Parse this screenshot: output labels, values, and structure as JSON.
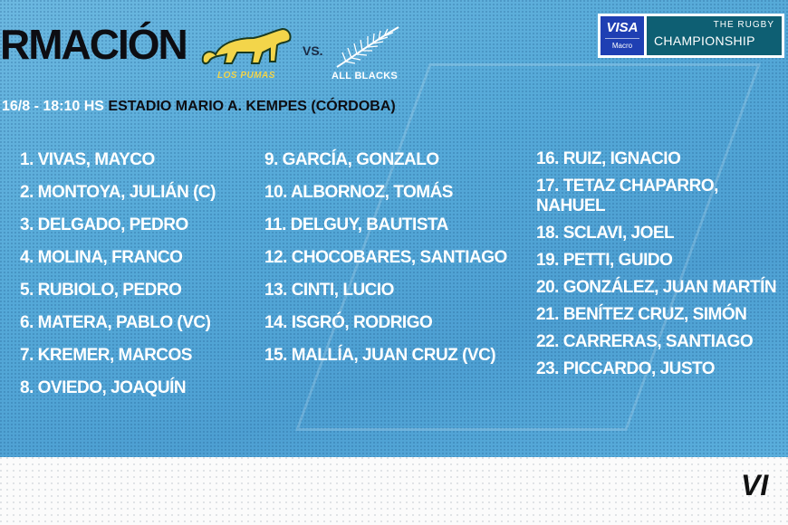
{
  "header": {
    "title": "RMACIÓN",
    "date_time": "16/8 - 18:10 HS",
    "venue": "ESTADIO MARIO A. KEMPES (CÓRDOBA)",
    "versus": "VS.",
    "home_team": "LOS PUMAS",
    "away_team": "ALL BLACKS"
  },
  "sponsor": {
    "visa": "VISA",
    "macro": "Macro",
    "trc_top": "THE RUGBY",
    "trc_main": "CHAMPIONSHIP"
  },
  "lineup": {
    "starters_forwards": [
      "1. VIVAS, MAYCO",
      "2. MONTOYA, JULIÁN (C)",
      "3. DELGADO, PEDRO",
      "4. MOLINA, FRANCO",
      "5. RUBIOLO, PEDRO",
      "6. MATERA, PABLO (VC)",
      "7. KREMER, MARCOS",
      "8. OVIEDO, JOAQUÍN"
    ],
    "starters_backs": [
      "9. GARCÍA, GONZALO",
      "10. ALBORNOZ, TOMÁS",
      "11. DELGUY, BAUTISTA",
      "12. CHOCOBARES, SANTIAGO",
      "13. CINTI, LUCIO",
      "14. ISGRÓ, RODRIGO",
      "15. MALLÍA, JUAN CRUZ  (VC)"
    ],
    "substitutes": [
      "16. RUIZ, IGNACIO",
      "17. TETAZ CHAPARRO, NAHUEL",
      "18. SCLAVI, JOEL",
      "19. PETTI, GUIDO",
      "20. GONZÁLEZ, JUAN MARTÍN",
      "21. BENÍTEZ CRUZ, SIMÓN",
      "22. CARRERAS, SANTIAGO",
      "23. PICCARDO, JUSTO"
    ]
  },
  "footer": {
    "visa_partial": "VI"
  },
  "colors": {
    "background": "#5aaedc",
    "title": "#0d0d12",
    "puma": "#f3d54a",
    "visa_blue": "#1f3fb3",
    "trc_teal": "#0e5f73"
  }
}
